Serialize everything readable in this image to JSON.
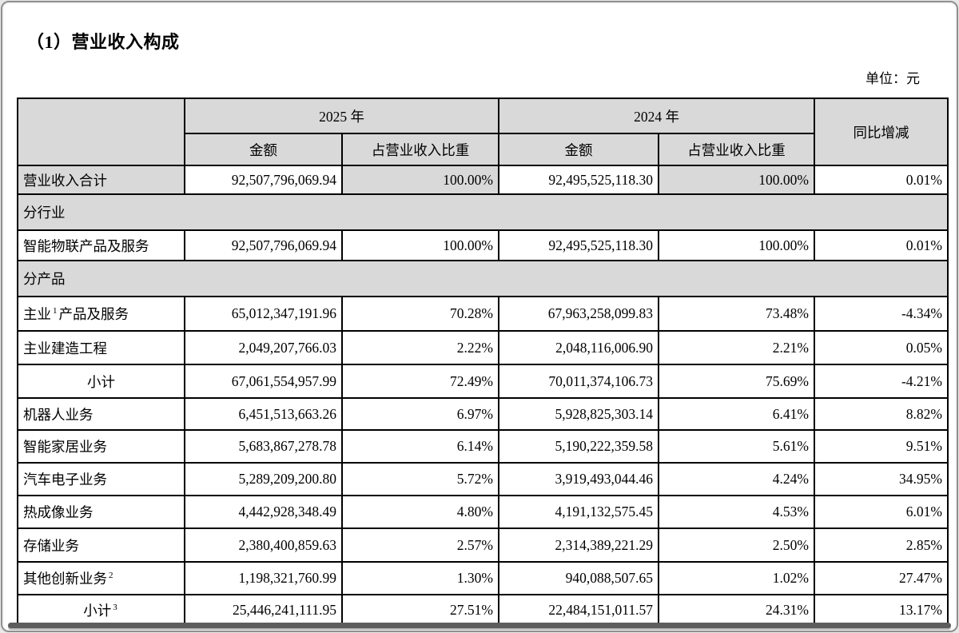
{
  "page": {
    "title": "（1）营业收入构成",
    "unit_label": "单位：元"
  },
  "table": {
    "col_groups": [
      {
        "label": "2025 年",
        "amount_label": "金额",
        "share_label": "占营业收入比重"
      },
      {
        "label": "2024 年",
        "amount_label": "金额",
        "share_label": "占营业收入比重"
      }
    ],
    "yoy_header": "同比增减",
    "rows": [
      {
        "type": "data",
        "label": "营业收入合计",
        "shaded_label": true,
        "shaded_share": true,
        "cells": [
          "92,507,796,069.94",
          "100.00%",
          "92,495,525,118.30",
          "100.00%",
          "0.01%"
        ]
      },
      {
        "type": "section",
        "label": "分行业"
      },
      {
        "type": "data",
        "label": "智能物联产品及服务",
        "cells": [
          "92,507,796,069.94",
          "100.00%",
          "92,495,525,118.30",
          "100.00%",
          "0.01%"
        ]
      },
      {
        "type": "section",
        "label": "分产品"
      },
      {
        "type": "data",
        "label": "主业",
        "sup": "1",
        "label_suffix": "产品及服务",
        "cells": [
          "65,012,347,191.96",
          "70.28%",
          "67,963,258,099.83",
          "73.48%",
          "-4.34%"
        ]
      },
      {
        "type": "data",
        "label": "主业建造工程",
        "cells": [
          "2,049,207,766.03",
          "2.22%",
          "2,048,116,006.90",
          "2.21%",
          "0.05%"
        ]
      },
      {
        "type": "data",
        "label": "小计",
        "label_align": "center",
        "cells": [
          "67,061,554,957.99",
          "72.49%",
          "70,011,374,106.73",
          "75.69%",
          "-4.21%"
        ]
      },
      {
        "type": "data",
        "label": "机器人业务",
        "cells": [
          "6,451,513,663.26",
          "6.97%",
          "5,928,825,303.14",
          "6.41%",
          "8.82%"
        ]
      },
      {
        "type": "data",
        "label": "智能家居业务",
        "cells": [
          "5,683,867,278.78",
          "6.14%",
          "5,190,222,359.58",
          "5.61%",
          "9.51%"
        ]
      },
      {
        "type": "data",
        "label": "汽车电子业务",
        "cells": [
          "5,289,209,200.80",
          "5.72%",
          "3,919,493,044.46",
          "4.24%",
          "34.95%"
        ]
      },
      {
        "type": "data",
        "label": "热成像业务",
        "cells": [
          "4,442,928,348.49",
          "4.80%",
          "4,191,132,575.45",
          "4.53%",
          "6.01%"
        ]
      },
      {
        "type": "data",
        "label": "存储业务",
        "cells": [
          "2,380,400,859.63",
          "2.57%",
          "2,314,389,221.29",
          "2.50%",
          "2.85%"
        ]
      },
      {
        "type": "data",
        "label": "其他创新业务",
        "sup": "2",
        "label_suffix": "",
        "cells": [
          "1,198,321,760.99",
          "1.30%",
          "940,088,507.65",
          "1.02%",
          "27.47%"
        ]
      },
      {
        "type": "data",
        "label": "小计",
        "sup": "3",
        "label_suffix": "",
        "label_align": "center",
        "cells": [
          "25,446,241,111.95",
          "27.51%",
          "22,484,151,011.57",
          "24.31%",
          "13.17%"
        ]
      }
    ]
  }
}
